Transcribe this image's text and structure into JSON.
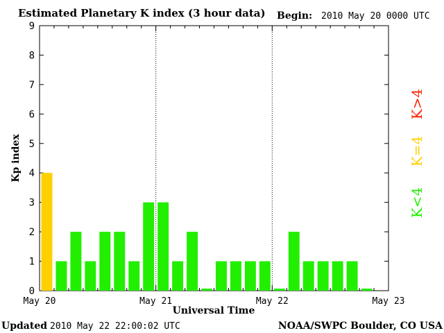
{
  "header": {
    "title": "Estimated Planetary K index (3 hour data)",
    "begin_label": "Begin:",
    "begin_value": "2010 May 20 0000 UTC"
  },
  "footer": {
    "updated_label": "Updated",
    "updated_value": "2010 May 22 22:00:02 UTC",
    "credit": "NOAA/SWPC Boulder, CO USA"
  },
  "legend": {
    "high": "K>4",
    "mid": "K=4",
    "low": "K<4"
  },
  "colors": {
    "high": "#ff2000",
    "mid": "#ffd000",
    "low": "#22ee00",
    "axis": "#000000"
  },
  "chart_data": {
    "type": "bar",
    "title": "Estimated Planetary K index (3 hour data)",
    "xlabel": "Universal Time",
    "ylabel": "Kp index",
    "ylim": [
      0,
      9
    ],
    "yticks": [
      0,
      1,
      2,
      3,
      4,
      5,
      6,
      7,
      8,
      9
    ],
    "xticks": [
      "May 20",
      "May 21",
      "May 22",
      "May 23"
    ],
    "days": 3,
    "bars_per_day": 8,
    "values": [
      4,
      1,
      2,
      1,
      2,
      2,
      1,
      3,
      3,
      1,
      2,
      0,
      1,
      1,
      1,
      1,
      0,
      2,
      1,
      1,
      1,
      1,
      0
    ],
    "day_separators": "dotted"
  }
}
